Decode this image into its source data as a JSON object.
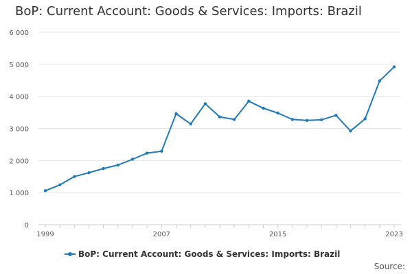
{
  "chart_data": {
    "type": "line",
    "title": "BoP: Current Account: Goods & Services: Imports: Brazil",
    "xlabel": "",
    "ylabel": "",
    "x": [
      1999,
      2000,
      2001,
      2002,
      2003,
      2004,
      2005,
      2006,
      2007,
      2008,
      2009,
      2010,
      2011,
      2012,
      2013,
      2014,
      2015,
      2016,
      2017,
      2018,
      2019,
      2020,
      2021,
      2022,
      2023
    ],
    "x_tick_labels": [
      "1999",
      "2007",
      "2015",
      "2023"
    ],
    "x_ticks": [
      1999,
      2007,
      2015,
      2023
    ],
    "ylim": [
      0,
      6000
    ],
    "y_ticks": [
      0,
      1000,
      2000,
      3000,
      4000,
      5000,
      6000
    ],
    "y_tick_labels": [
      "0",
      "1 000",
      "2 000",
      "3 000",
      "4 000",
      "5 000",
      "6 000"
    ],
    "grid": "horizontal",
    "legend_position": "bottom",
    "series": [
      {
        "name": "BoP: Current Account: Goods & Services: Imports: Brazil",
        "color": "#1f7ab8",
        "values": [
          1060,
          1240,
          1500,
          1620,
          1750,
          1860,
          2040,
          2230,
          2290,
          3460,
          3140,
          3770,
          3360,
          3280,
          3850,
          3630,
          3480,
          3280,
          3250,
          3270,
          3410,
          2920,
          3300,
          4480,
          4920
        ]
      }
    ]
  },
  "source_label": "Source:"
}
